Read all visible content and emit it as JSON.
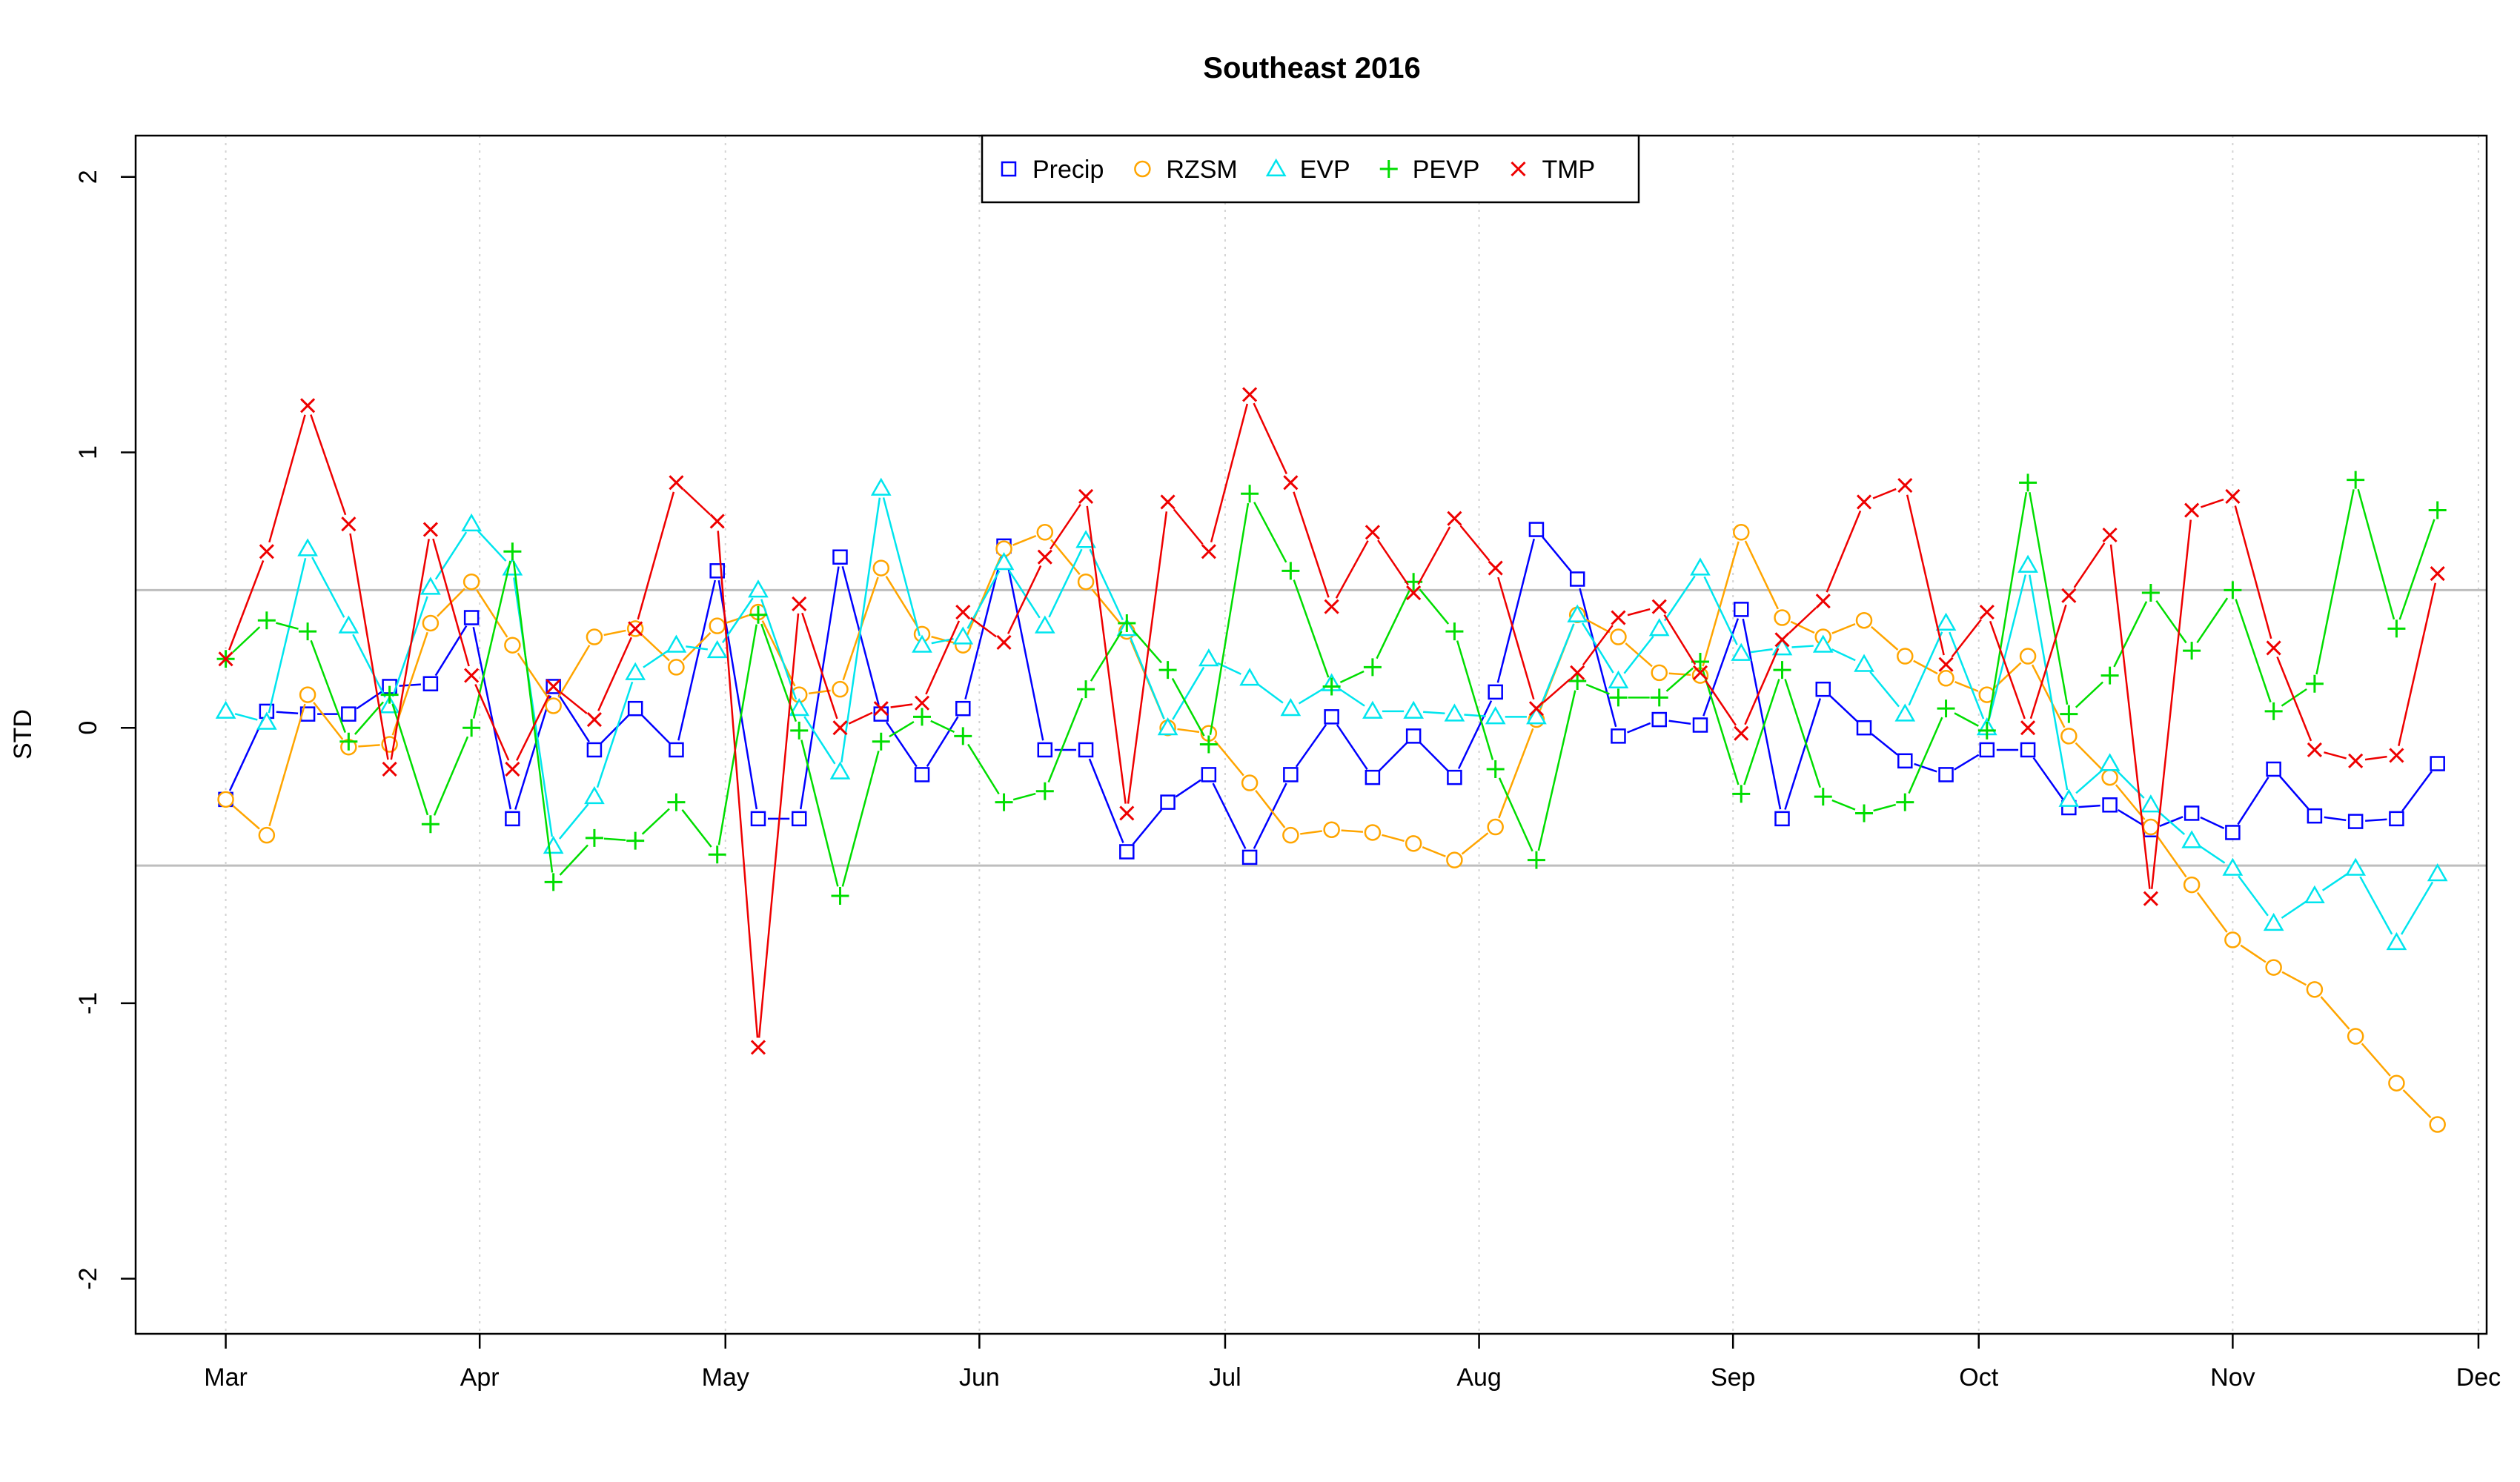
{
  "chart_data": {
    "type": "line",
    "title": "Southeast 2016",
    "xlabel": "",
    "ylabel": "STD",
    "ylim": [
      -2.2,
      2.15
    ],
    "yticks": [
      -2,
      -1,
      0,
      1,
      2
    ],
    "x_start": "2016-03-01",
    "x_end": "2016-12-01",
    "x_tick_labels": [
      "Mar",
      "Apr",
      "May",
      "Jun",
      "Jul",
      "Aug",
      "Sep",
      "Oct",
      "Nov",
      "Dec"
    ],
    "x_tick_dates": [
      "2016-03-01",
      "2016-04-01",
      "2016-05-01",
      "2016-06-01",
      "2016-07-01",
      "2016-08-01",
      "2016-09-01",
      "2016-10-01",
      "2016-11-01",
      "2016-12-01"
    ],
    "x_first_date": "2016-03-01",
    "x_step_days": 5,
    "reference_lines": [
      0.5,
      -0.5
    ],
    "grid": "vertical-dotted",
    "legend": "top-center",
    "series": [
      {
        "name": "Precip",
        "color": "#0000ff",
        "marker": "square",
        "values": [
          -0.26,
          0.06,
          0.05,
          0.05,
          0.15,
          0.16,
          0.4,
          -0.33,
          0.15,
          -0.08,
          0.07,
          -0.08,
          0.57,
          -0.33,
          -0.33,
          0.62,
          0.05,
          -0.17,
          0.07,
          0.66,
          -0.08,
          -0.08,
          -0.45,
          -0.27,
          -0.17,
          -0.47,
          -0.17,
          0.04,
          -0.18,
          -0.03,
          -0.18,
          0.13,
          0.72,
          0.54,
          -0.03,
          0.03,
          0.01,
          0.43,
          -0.33,
          0.14,
          0.0,
          -0.12,
          -0.17,
          -0.08,
          -0.08,
          -0.29,
          -0.28,
          -0.37,
          -0.31,
          -0.38,
          -0.15,
          -0.32,
          -0.34,
          -0.33,
          -0.13
        ]
      },
      {
        "name": "RZSM",
        "color": "#ffa500",
        "marker": "circle",
        "values": [
          -0.26,
          -0.39,
          0.12,
          -0.07,
          -0.06,
          0.38,
          0.53,
          0.3,
          0.08,
          0.33,
          0.36,
          0.22,
          0.37,
          0.42,
          0.12,
          0.14,
          0.58,
          0.34,
          0.3,
          0.65,
          0.71,
          0.53,
          0.35,
          0.0,
          -0.02,
          -0.2,
          -0.39,
          -0.37,
          -0.38,
          -0.42,
          -0.48,
          -0.36,
          0.03,
          0.41,
          0.33,
          0.2,
          0.19,
          0.71,
          0.4,
          0.33,
          0.39,
          0.26,
          0.18,
          0.12,
          0.26,
          -0.03,
          -0.18,
          -0.36,
          -0.57,
          -0.77,
          -0.87,
          -0.95,
          -1.12,
          -1.29,
          -1.44
        ]
      },
      {
        "name": "EVP",
        "color": "#00e5ee",
        "marker": "triangle",
        "values": [
          0.06,
          0.02,
          0.65,
          0.37,
          0.08,
          0.51,
          0.74,
          0.58,
          -0.43,
          -0.25,
          0.2,
          0.3,
          0.28,
          0.5,
          0.07,
          -0.16,
          0.87,
          0.3,
          0.33,
          0.6,
          0.37,
          0.68,
          0.36,
          0.0,
          0.25,
          0.18,
          0.07,
          0.16,
          0.06,
          0.06,
          0.05,
          0.04,
          0.04,
          0.41,
          0.17,
          0.36,
          0.58,
          0.27,
          0.29,
          0.3,
          0.23,
          0.05,
          0.38,
          0.0,
          0.59,
          -0.26,
          -0.13,
          -0.28,
          -0.41,
          -0.51,
          -0.71,
          -0.61,
          -0.51,
          -0.78,
          -0.53
        ]
      },
      {
        "name": "PEVP",
        "color": "#00dd00",
        "marker": "plus",
        "values": [
          0.25,
          0.39,
          0.35,
          -0.05,
          0.12,
          -0.35,
          0.0,
          0.64,
          -0.56,
          -0.4,
          -0.41,
          -0.27,
          -0.46,
          0.41,
          -0.01,
          -0.61,
          -0.05,
          0.04,
          -0.03,
          -0.27,
          -0.23,
          0.14,
          0.38,
          0.21,
          -0.06,
          0.85,
          0.57,
          0.15,
          0.22,
          0.53,
          0.35,
          -0.15,
          -0.48,
          0.17,
          0.11,
          0.11,
          0.24,
          -0.24,
          0.21,
          -0.25,
          -0.31,
          -0.27,
          0.07,
          -0.01,
          0.89,
          0.05,
          0.19,
          0.49,
          0.28,
          0.5,
          0.06,
          0.16,
          0.9,
          0.36,
          0.79
        ]
      },
      {
        "name": "TMP",
        "color": "#ee0000",
        "marker": "x",
        "values": [
          0.25,
          0.64,
          1.17,
          0.74,
          -0.15,
          0.72,
          0.19,
          -0.15,
          0.15,
          0.03,
          0.36,
          0.89,
          0.75,
          -1.16,
          0.45,
          0.0,
          0.07,
          0.09,
          0.42,
          0.31,
          0.62,
          0.84,
          -0.31,
          0.82,
          0.64,
          1.21,
          0.89,
          0.44,
          0.71,
          0.49,
          0.76,
          0.58,
          0.07,
          0.2,
          0.4,
          0.44,
          0.2,
          -0.02,
          0.32,
          0.46,
          0.82,
          0.88,
          0.23,
          0.42,
          0.0,
          0.48,
          0.7,
          -0.62,
          0.79,
          0.84,
          0.29,
          -0.08,
          -0.12,
          -0.1,
          0.56
        ]
      }
    ]
  }
}
